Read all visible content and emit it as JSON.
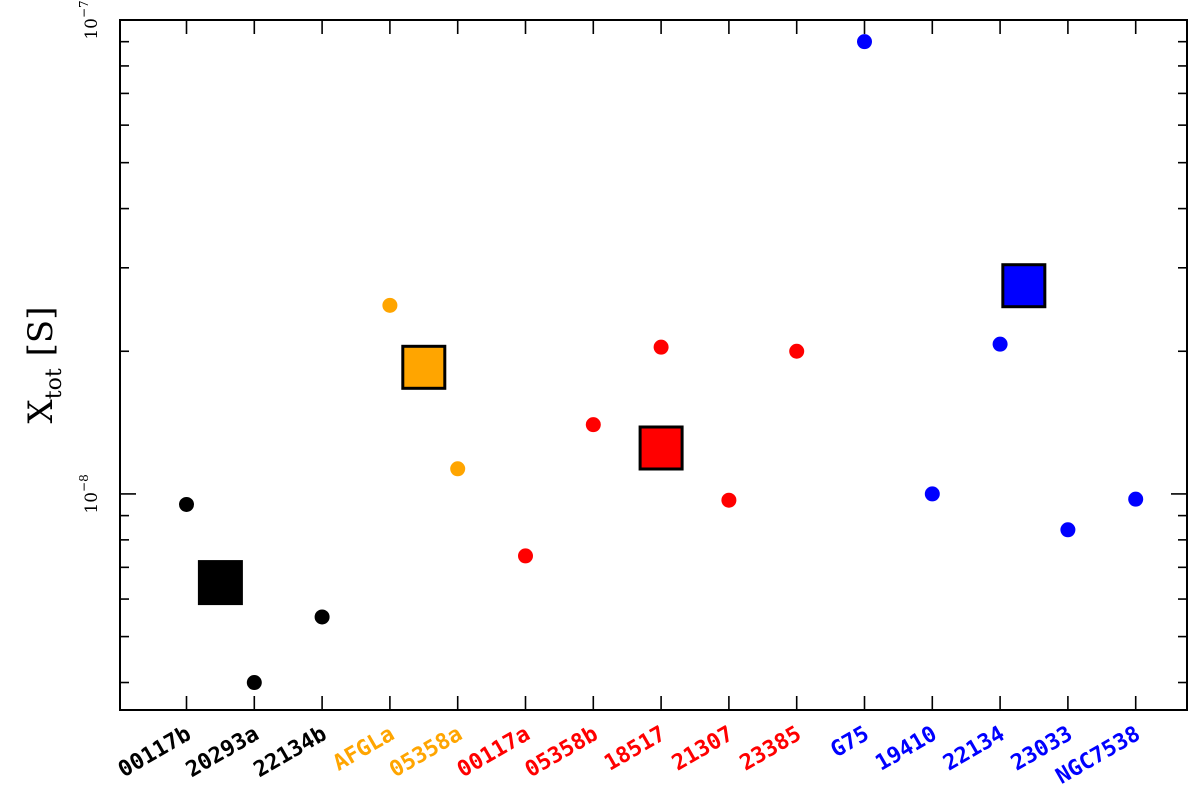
{
  "chart_data": {
    "type": "scatter",
    "title": "",
    "ylabel": {
      "main": "X",
      "sub": "tot",
      "unit": "[S]"
    },
    "xlabel": "",
    "yscale": "log",
    "ylim": [
      3.5e-09,
      1e-07
    ],
    "ytick_labels": [
      {
        "value": 1e-08,
        "base": "10",
        "exp": "−8"
      },
      {
        "value": 1e-07,
        "base": "10",
        "exp": "−7"
      }
    ],
    "categories": [
      {
        "label": "00117b",
        "group": "black"
      },
      {
        "label": "20293a",
        "group": "black"
      },
      {
        "label": "22134b",
        "group": "black"
      },
      {
        "label": "AFGLa",
        "group": "orange"
      },
      {
        "label": "05358a",
        "group": "orange"
      },
      {
        "label": "00117a",
        "group": "red"
      },
      {
        "label": "05358b",
        "group": "red"
      },
      {
        "label": "18517",
        "group": "red"
      },
      {
        "label": "21307",
        "group": "red"
      },
      {
        "label": "23385",
        "group": "red"
      },
      {
        "label": "G75",
        "group": "blue"
      },
      {
        "label": "19410",
        "group": "blue"
      },
      {
        "label": "22134",
        "group": "blue"
      },
      {
        "label": "23033",
        "group": "blue"
      },
      {
        "label": "NGC7538",
        "group": "blue"
      }
    ],
    "groups": {
      "black": {
        "color": "#000000",
        "mean": {
          "x": 0.5,
          "y": 6.5e-09
        }
      },
      "orange": {
        "color": "#ffa500",
        "mean": {
          "x": 3.5,
          "y": 1.85e-08
        }
      },
      "red": {
        "color": "#ff0000",
        "mean": {
          "x": 7.0,
          "y": 1.25e-08
        }
      },
      "blue": {
        "color": "#0000ff",
        "mean": {
          "x": 12.35,
          "y": 2.75e-08
        }
      }
    },
    "points": [
      {
        "x": 0,
        "y": 9.5e-09,
        "group": "black"
      },
      {
        "x": 1,
        "y": 4e-09,
        "group": "black"
      },
      {
        "x": 2,
        "y": 5.5e-09,
        "group": "black"
      },
      {
        "x": 3,
        "y": 2.5e-08,
        "group": "orange"
      },
      {
        "x": 4,
        "y": 1.13e-08,
        "group": "orange"
      },
      {
        "x": 5,
        "y": 7.4e-09,
        "group": "red"
      },
      {
        "x": 6,
        "y": 1.4e-08,
        "group": "red"
      },
      {
        "x": 7,
        "y": 2.04e-08,
        "group": "red"
      },
      {
        "x": 8,
        "y": 9.7e-09,
        "group": "red"
      },
      {
        "x": 9,
        "y": 2e-08,
        "group": "red"
      },
      {
        "x": 10,
        "y": 9e-08,
        "group": "blue"
      },
      {
        "x": 11,
        "y": 1e-08,
        "group": "blue"
      },
      {
        "x": 12,
        "y": 2.07e-08,
        "group": "blue"
      },
      {
        "x": 13,
        "y": 8.4e-09,
        "group": "blue"
      },
      {
        "x": 14,
        "y": 9.75e-09,
        "group": "blue"
      }
    ],
    "grid": false,
    "legend": "none"
  }
}
